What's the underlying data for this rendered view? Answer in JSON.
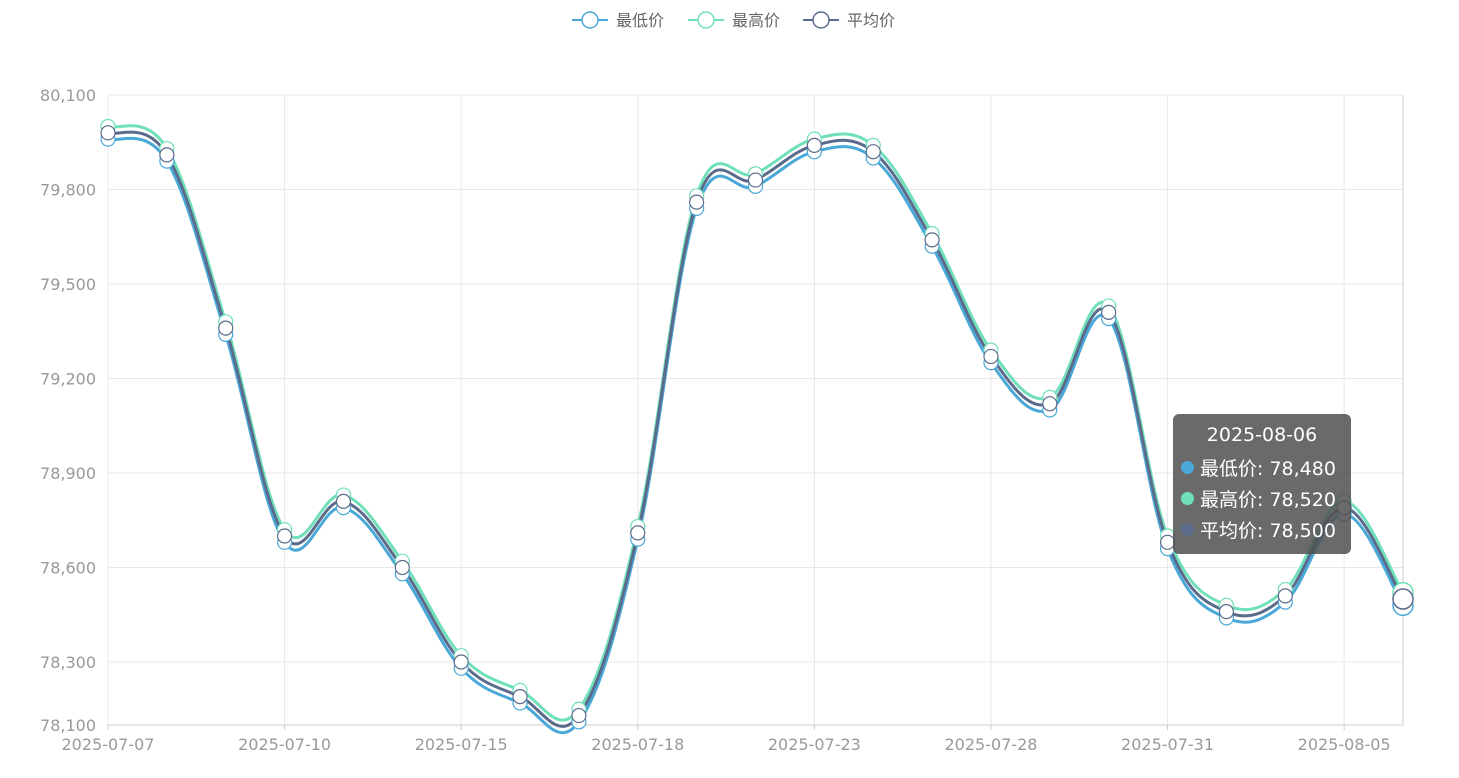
{
  "colors": {
    "low": "#4aa8d8",
    "high": "#6fe0b9",
    "avg": "#5b6b8c",
    "grid": "#e8e8e8",
    "axis": "#cccccc",
    "tick_text": "#999999"
  },
  "legend": {
    "items": [
      {
        "label": "最低价",
        "color": "#4aa8d8"
      },
      {
        "label": "最高价",
        "color": "#6fe0b9"
      },
      {
        "label": "平均价",
        "color": "#5b6b8c"
      }
    ]
  },
  "tooltip": {
    "title": "2025-08-06",
    "rows": [
      {
        "label": "最低价: 78,480",
        "color": "#4aa8d8"
      },
      {
        "label": "最高价: 78,520",
        "color": "#6fe0b9"
      },
      {
        "label": "平均价: 78,500",
        "color": "#5b6b8c"
      }
    ]
  },
  "chart_data": {
    "type": "line",
    "title": "",
    "xlabel": "",
    "ylabel": "",
    "smooth": true,
    "grid": true,
    "legend_position": "top-center",
    "ylim": [
      78100,
      80100
    ],
    "yticks": [
      "80,100",
      "79,800",
      "79,500",
      "79,200",
      "78,900",
      "78,600",
      "78,300",
      "78,100"
    ],
    "ytick_values": [
      80100,
      79800,
      79500,
      79200,
      78900,
      78600,
      78300,
      78100
    ],
    "x": [
      "2025-07-07",
      "2025-07-08",
      "2025-07-09",
      "2025-07-10",
      "2025-07-11",
      "2025-07-14",
      "2025-07-15",
      "2025-07-16",
      "2025-07-17",
      "2025-07-18",
      "2025-07-21",
      "2025-07-22",
      "2025-07-23",
      "2025-07-24",
      "2025-07-25",
      "2025-07-28",
      "2025-07-29",
      "2025-07-30",
      "2025-07-31",
      "2025-08-01",
      "2025-08-04",
      "2025-08-05",
      "2025-08-06"
    ],
    "xtick_labels": [
      "2025-07-07",
      "2025-07-10",
      "2025-07-15",
      "2025-07-18",
      "2025-07-23",
      "2025-07-28",
      "2025-07-31",
      "2025-08-05"
    ],
    "series": [
      {
        "name": "最低价",
        "values": [
          79960,
          79890,
          79340,
          78680,
          78790,
          78580,
          78280,
          78170,
          78110,
          78690,
          79740,
          79810,
          79920,
          79900,
          79620,
          79250,
          79100,
          79390,
          78660,
          78440,
          78490,
          78770,
          78480
        ]
      },
      {
        "name": "最高价",
        "values": [
          80000,
          79930,
          79380,
          78720,
          78830,
          78620,
          78320,
          78210,
          78150,
          78730,
          79780,
          79850,
          79960,
          79940,
          79660,
          79290,
          79140,
          79430,
          78700,
          78480,
          78530,
          78810,
          78520
        ]
      },
      {
        "name": "平均价",
        "values": [
          79980,
          79910,
          79360,
          78700,
          78810,
          78600,
          78300,
          78190,
          78130,
          78710,
          79760,
          79830,
          79940,
          79920,
          79640,
          79270,
          79120,
          79410,
          78680,
          78460,
          78510,
          78790,
          78500
        ]
      }
    ]
  }
}
